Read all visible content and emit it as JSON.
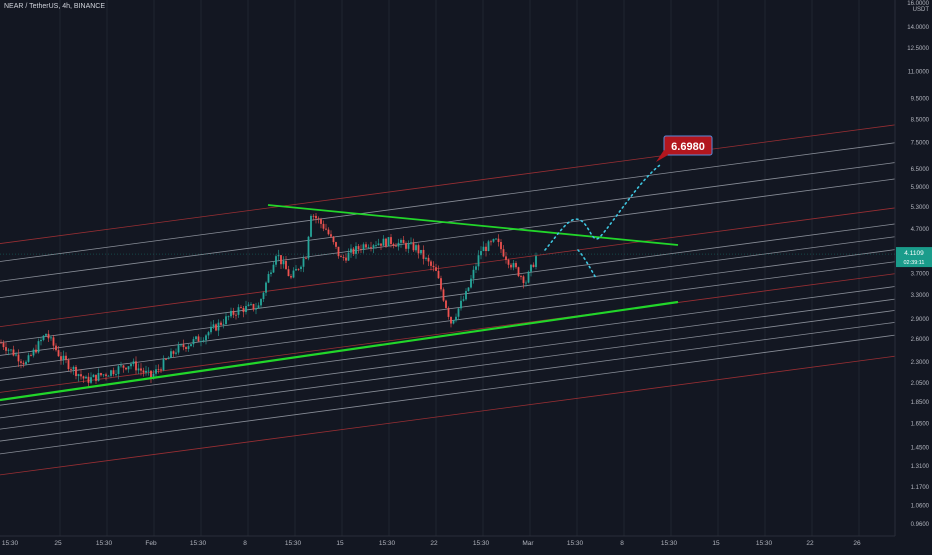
{
  "symbol_title": "NEAR / TetherUS, 4h, BINANCE",
  "currency": "USDT",
  "colors": {
    "background": "#131722",
    "up": "#26a69a",
    "down": "#ef5350",
    "trend_green": "#22d62a",
    "channel_red": "#b13336",
    "channel_gray": "#9ea3ad",
    "projection": "#3ec6e0",
    "target_badge": "#b2161e",
    "price_badge": "#1a9c8b",
    "axis_text": "#b2b5be"
  },
  "chart_data": {
    "type": "candlestick",
    "yscale": "log",
    "ylim": [
      0.88,
      16.0
    ],
    "yticks": [
      "16.0000",
      "14.0000",
      "12.5000",
      "11.0000",
      "9.5000",
      "8.5000",
      "7.5000",
      "6.5000",
      "5.9000",
      "5.3000",
      "4.7000",
      "3.7000",
      "3.3000",
      "2.9000",
      "2.6000",
      "2.3000",
      "2.0500",
      "1.8500",
      "1.6500",
      "1.4500",
      "1.3100",
      "1.1700",
      "1.0600",
      "0.9600"
    ],
    "xticks": [
      "15:30",
      "25",
      "15:30",
      "Feb",
      "15:30",
      "8",
      "15:30",
      "15",
      "15:30",
      "22",
      "15:30",
      "Mar",
      "15:30",
      "8",
      "15:30",
      "15",
      "15:30",
      "22",
      "26"
    ],
    "last_price": "4.1109",
    "countdown": "02:39:11",
    "target_label": "6.6980",
    "anchors": [
      {
        "i": 0,
        "v": 2.55
      },
      {
        "i": 10,
        "v": 2.28
      },
      {
        "i": 18,
        "v": 2.68
      },
      {
        "i": 24,
        "v": 2.35
      },
      {
        "i": 34,
        "v": 2.08
      },
      {
        "i": 42,
        "v": 2.16
      },
      {
        "i": 52,
        "v": 2.28
      },
      {
        "i": 60,
        "v": 2.12
      },
      {
        "i": 70,
        "v": 2.45
      },
      {
        "i": 80,
        "v": 2.62
      },
      {
        "i": 86,
        "v": 2.78
      },
      {
        "i": 95,
        "v": 3.05
      },
      {
        "i": 103,
        "v": 3.1
      },
      {
        "i": 110,
        "v": 4.15
      },
      {
        "i": 116,
        "v": 3.6
      },
      {
        "i": 122,
        "v": 4.1
      },
      {
        "i": 124,
        "v": 5.15
      },
      {
        "i": 130,
        "v": 4.7
      },
      {
        "i": 136,
        "v": 4.0
      },
      {
        "i": 146,
        "v": 4.35
      },
      {
        "i": 156,
        "v": 4.4
      },
      {
        "i": 166,
        "v": 4.25
      },
      {
        "i": 174,
        "v": 3.72
      },
      {
        "i": 180,
        "v": 2.85
      },
      {
        "i": 186,
        "v": 3.3
      },
      {
        "i": 192,
        "v": 4.2
      },
      {
        "i": 198,
        "v": 4.4
      },
      {
        "i": 204,
        "v": 3.9
      },
      {
        "i": 210,
        "v": 3.55
      },
      {
        "i": 214,
        "v": 4.05
      }
    ]
  }
}
